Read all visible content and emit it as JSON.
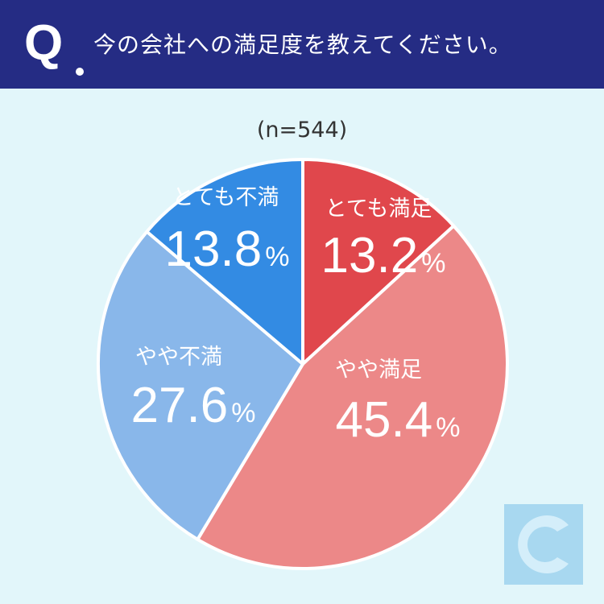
{
  "header": {
    "q_mark": "Q",
    "question": "今の会社への満足度を教えてください。"
  },
  "sample_size": "(n=544)",
  "colors": {
    "header_bg": "#252c84",
    "background": "#e2f6fa",
    "very_satisfied": "#e0474c",
    "somewhat_satisfied": "#ec8888",
    "somewhat_dissatisfied": "#89b7ea",
    "very_dissatisfied": "#338be3"
  },
  "logo_icon": "crescent-c-logo-icon",
  "chart_data": {
    "type": "pie",
    "title": "今の会社への満足度を教えてください。",
    "n": 544,
    "unit": "%",
    "slices": [
      {
        "label": "とても満足",
        "value": 13.2,
        "value_text": "13.2",
        "color": "#e0474c"
      },
      {
        "label": "やや満足",
        "value": 45.4,
        "value_text": "45.4",
        "color": "#ec8888"
      },
      {
        "label": "やや不満",
        "value": 27.6,
        "value_text": "27.6",
        "color": "#89b7ea"
      },
      {
        "label": "とても不満",
        "value": 13.8,
        "value_text": "13.8",
        "color": "#338be3"
      }
    ]
  }
}
